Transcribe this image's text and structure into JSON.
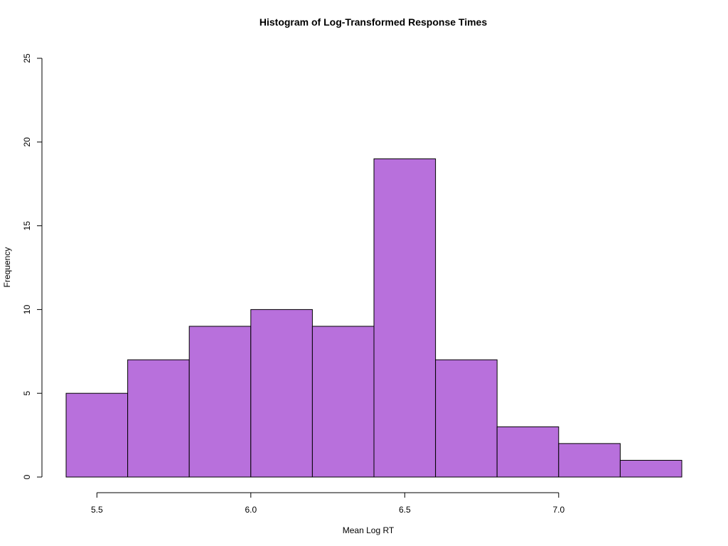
{
  "chart_data": {
    "type": "bar",
    "title": "Histogram of Log-Transformed Response Times",
    "xlabel": "Mean Log RT",
    "ylabel": "Frequency",
    "bin_edges": [
      5.4,
      5.6,
      5.8,
      6.0,
      6.2,
      6.4,
      6.6,
      6.8,
      7.0,
      7.2,
      7.4
    ],
    "values": [
      5,
      7,
      9,
      10,
      9,
      19,
      7,
      3,
      2,
      1
    ],
    "xlim": [
      5.4,
      7.4
    ],
    "ylim": [
      0,
      25
    ],
    "x_ticks": [
      5.5,
      6.0,
      6.5,
      7.0
    ],
    "x_tick_labels": [
      "5.5",
      "6.0",
      "6.5",
      "7.0"
    ],
    "y_ticks": [
      0,
      5,
      10,
      15,
      20,
      25
    ],
    "y_tick_labels": [
      "0",
      "5",
      "10",
      "15",
      "20",
      "25"
    ],
    "bar_color": "#b870dc",
    "grid": false,
    "legend": "none"
  }
}
